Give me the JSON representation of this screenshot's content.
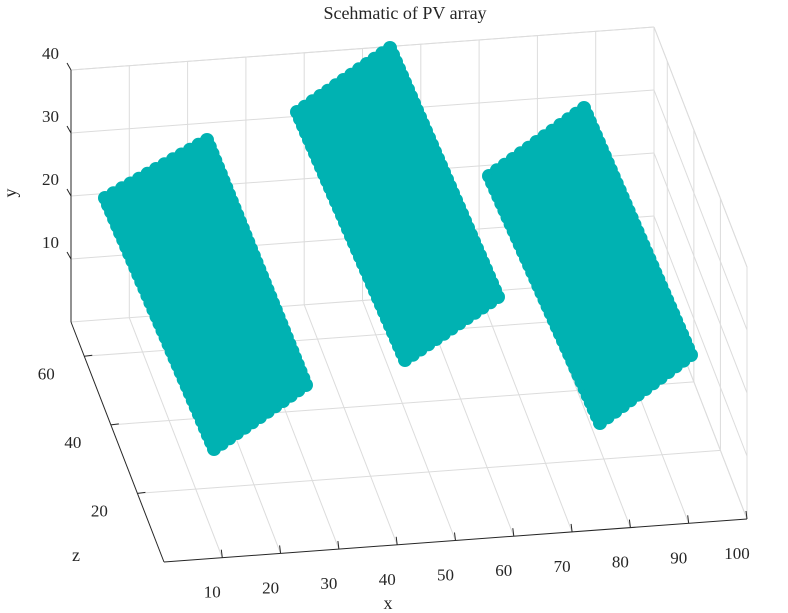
{
  "chart_data": {
    "type": "scatter3d",
    "title": "Scehmatic of PV array",
    "xlabel": "x",
    "ylabel": "y",
    "zlabel": "z",
    "x_ticks": [
      "10",
      "20",
      "30",
      "40",
      "50",
      "60",
      "70",
      "80",
      "90",
      "100"
    ],
    "y_ticks": [
      "10",
      "20",
      "30",
      "40"
    ],
    "z_ticks": [
      "20",
      "40",
      "60"
    ],
    "xlim": [
      0,
      100
    ],
    "ylim": [
      0,
      40
    ],
    "zlim": [
      0,
      70
    ],
    "grid": true,
    "marker_color": "#00b2b2",
    "panels": [
      {
        "corners": [
          [
            105,
            198
          ],
          [
            207,
            140
          ],
          [
            306,
            385
          ],
          [
            214,
            449
          ]
        ]
      },
      {
        "corners": [
          [
            297,
            112
          ],
          [
            390,
            48
          ],
          [
            498,
            297
          ],
          [
            405,
            360
          ]
        ]
      },
      {
        "corners": [
          [
            489,
            176
          ],
          [
            584,
            108
          ],
          [
            691,
            355
          ],
          [
            600,
            423
          ]
        ]
      }
    ]
  }
}
